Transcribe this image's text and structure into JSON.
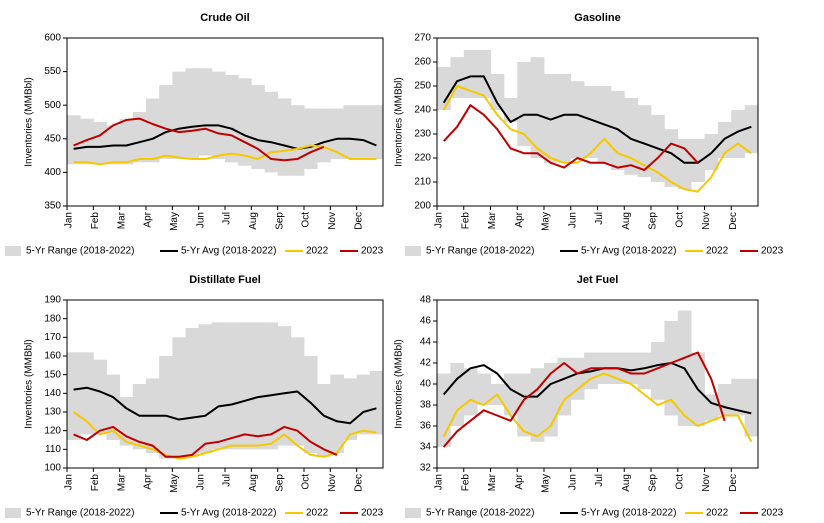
{
  "chart_data": [
    {
      "type": "line",
      "title": "Crude Oil",
      "y_label": "Inventories (MMBbl)",
      "categories": [
        "Jan",
        null,
        "Feb",
        null,
        "Mar",
        null,
        "Apr",
        null,
        "May",
        null,
        "Jun",
        null,
        "Jul",
        null,
        "Aug",
        null,
        "Sep",
        null,
        "Oct",
        null,
        "Nov",
        null,
        "Dec",
        null
      ],
      "ylim": [
        350,
        600
      ],
      "yticks": [
        350,
        400,
        450,
        500,
        550,
        600
      ],
      "legend": "bottom",
      "series": [
        {
          "name": "5-Yr Range (2018-2022)",
          "color": "#d9d9d9",
          "low": [
            412,
            412,
            412,
            412,
            412,
            415,
            415,
            420,
            420,
            420,
            425,
            420,
            415,
            410,
            405,
            400,
            395,
            395,
            405,
            415,
            420,
            420,
            420,
            420
          ],
          "high": [
            485,
            480,
            475,
            470,
            480,
            490,
            510,
            530,
            550,
            555,
            555,
            550,
            545,
            540,
            530,
            520,
            510,
            500,
            495,
            495,
            495,
            500,
            500,
            500
          ]
        },
        {
          "name": "5-Yr Avg (2018-2022)",
          "color": "#000000",
          "values": [
            435,
            438,
            438,
            440,
            440,
            445,
            450,
            460,
            465,
            468,
            470,
            470,
            465,
            455,
            448,
            445,
            440,
            435,
            438,
            445,
            450,
            450,
            448,
            440
          ]
        },
        {
          "name": "2022",
          "color": "#f5c800",
          "values": [
            415,
            415,
            412,
            415,
            415,
            420,
            420,
            425,
            422,
            420,
            420,
            425,
            428,
            425,
            420,
            430,
            432,
            435,
            440,
            438,
            430,
            420,
            420,
            420
          ]
        },
        {
          "name": "2023",
          "color": "#c00000",
          "values": [
            440,
            448,
            455,
            470,
            478,
            480,
            472,
            465,
            460,
            462,
            465,
            458,
            455,
            445,
            435,
            420,
            418,
            420,
            430,
            438,
            null,
            null,
            null,
            null
          ]
        }
      ]
    },
    {
      "type": "line",
      "title": "Gasoline",
      "y_label": "Inventories (MMBbl)",
      "categories": [
        "Jan",
        null,
        "Feb",
        null,
        "Mar",
        null,
        "Apr",
        null,
        "May",
        null,
        "Jun",
        null,
        "Jul",
        null,
        "Aug",
        null,
        "Sep",
        null,
        "Oct",
        null,
        "Nov",
        null,
        "Dec",
        null
      ],
      "ylim": [
        200,
        270
      ],
      "yticks": [
        200,
        210,
        220,
        230,
        240,
        250,
        260,
        270
      ],
      "legend": "bottom",
      "series": [
        {
          "name": "5-Yr Range (2018-2022)",
          "color": "#d9d9d9",
          "low": [
            240,
            245,
            245,
            245,
            240,
            235,
            225,
            220,
            218,
            218,
            220,
            220,
            218,
            215,
            213,
            212,
            210,
            208,
            207,
            210,
            215,
            220,
            220,
            222
          ],
          "high": [
            258,
            262,
            265,
            265,
            255,
            245,
            260,
            262,
            255,
            255,
            252,
            250,
            250,
            248,
            245,
            242,
            238,
            232,
            228,
            228,
            230,
            235,
            240,
            242
          ]
        },
        {
          "name": "5-Yr Avg (2018-2022)",
          "color": "#000000",
          "values": [
            243,
            252,
            254,
            254,
            243,
            235,
            238,
            238,
            236,
            238,
            238,
            236,
            234,
            232,
            228,
            226,
            224,
            222,
            218,
            218,
            222,
            228,
            231,
            233
          ]
        },
        {
          "name": "2022",
          "color": "#f5c800",
          "values": [
            240,
            250,
            248,
            246,
            238,
            232,
            230,
            224,
            220,
            218,
            218,
            222,
            228,
            222,
            220,
            217,
            214,
            210,
            207,
            206,
            212,
            222,
            226,
            222
          ]
        },
        {
          "name": "2023",
          "color": "#c00000",
          "values": [
            227,
            233,
            242,
            238,
            232,
            224,
            222,
            222,
            218,
            216,
            220,
            218,
            218,
            216,
            217,
            215,
            220,
            226,
            224,
            218,
            null,
            null,
            null,
            null
          ]
        }
      ]
    },
    {
      "type": "line",
      "title": "Distillate Fuel",
      "y_label": "Inventories (MMBbl)",
      "categories": [
        "Jan",
        null,
        "Feb",
        null,
        "Mar",
        null,
        "Apr",
        null,
        "May",
        null,
        "Jun",
        null,
        "Jul",
        null,
        "Aug",
        null,
        "Sep",
        null,
        "Oct",
        null,
        "Nov",
        null,
        "Dec",
        null
      ],
      "ylim": [
        100,
        190
      ],
      "yticks": [
        100,
        110,
        120,
        130,
        140,
        150,
        160,
        170,
        180,
        190
      ],
      "legend": "bottom",
      "series": [
        {
          "name": "5-Yr Range (2018-2022)",
          "color": "#d9d9d9",
          "low": [
            115,
            118,
            118,
            115,
            112,
            110,
            108,
            105,
            105,
            106,
            108,
            110,
            110,
            110,
            110,
            110,
            112,
            112,
            108,
            106,
            108,
            115,
            118,
            118
          ],
          "high": [
            162,
            162,
            158,
            150,
            138,
            145,
            148,
            160,
            170,
            175,
            177,
            178,
            178,
            178,
            178,
            178,
            176,
            170,
            160,
            145,
            150,
            148,
            150,
            152
          ]
        },
        {
          "name": "5-Yr Avg (2018-2022)",
          "color": "#000000",
          "values": [
            142,
            143,
            141,
            138,
            132,
            128,
            128,
            128,
            126,
            127,
            128,
            133,
            134,
            136,
            138,
            139,
            140,
            141,
            135,
            128,
            125,
            124,
            130,
            132
          ]
        },
        {
          "name": "2022",
          "color": "#f5c800",
          "values": [
            130,
            125,
            118,
            120,
            114,
            112,
            110,
            107,
            105,
            106,
            108,
            110,
            112,
            112,
            112,
            113,
            118,
            112,
            107,
            106,
            108,
            118,
            120,
            119
          ]
        },
        {
          "name": "2023",
          "color": "#c00000",
          "values": [
            118,
            115,
            120,
            122,
            117,
            114,
            112,
            106,
            106,
            107,
            113,
            114,
            116,
            118,
            117,
            118,
            122,
            120,
            114,
            110,
            107,
            null,
            null,
            null
          ]
        }
      ]
    },
    {
      "type": "line",
      "title": "Jet Fuel",
      "y_label": "Inventories (MMBbl)",
      "categories": [
        "Jan",
        null,
        "Feb",
        null,
        "Mar",
        null,
        "Apr",
        null,
        "May",
        null,
        "Jun",
        null,
        "Jul",
        null,
        "Aug",
        null,
        "Sep",
        null,
        "Oct",
        null,
        "Nov",
        null,
        "Dec",
        null
      ],
      "ylim": [
        32,
        48
      ],
      "yticks": [
        32,
        34,
        36,
        38,
        40,
        42,
        44,
        46,
        48
      ],
      "legend": "bottom",
      "series": [
        {
          "name": "5-Yr Range (2018-2022)",
          "color": "#d9d9d9",
          "low": [
            34,
            36,
            37,
            38,
            38,
            37,
            35,
            34.5,
            35,
            37,
            38.5,
            39.5,
            40,
            40,
            40,
            39.5,
            38.5,
            37,
            36,
            36,
            36.5,
            37,
            37,
            35
          ],
          "high": [
            41,
            42,
            41.5,
            41,
            40,
            41,
            41,
            41.5,
            42,
            42.5,
            42.5,
            43,
            43,
            43,
            43,
            43,
            44,
            46,
            47,
            43,
            39,
            40,
            40.5,
            40.5
          ]
        },
        {
          "name": "5-Yr Avg (2018-2022)",
          "color": "#000000",
          "values": [
            39,
            40.5,
            41.5,
            41.8,
            41,
            39.5,
            38.8,
            38.8,
            40,
            40.5,
            41,
            41.2,
            41.5,
            41.5,
            41.3,
            41.5,
            41.8,
            42,
            41.5,
            39.5,
            38.2,
            37.8,
            37.5,
            37.2
          ]
        },
        {
          "name": "2022",
          "color": "#f5c800",
          "values": [
            35,
            37.5,
            38.5,
            38,
            39,
            37,
            35.5,
            35,
            36,
            38.5,
            39.5,
            40.5,
            41,
            40.5,
            40,
            39,
            38,
            38.5,
            37,
            36,
            36.5,
            37,
            37,
            34.5
          ]
        },
        {
          "name": "2023",
          "color": "#c00000",
          "values": [
            34,
            35.5,
            36.5,
            37.5,
            37,
            36.5,
            38.5,
            39.5,
            41,
            42,
            41,
            41.5,
            41.5,
            41.5,
            41,
            41,
            41.5,
            42,
            42.5,
            43,
            40.5,
            36.5,
            null,
            null
          ]
        }
      ]
    }
  ]
}
